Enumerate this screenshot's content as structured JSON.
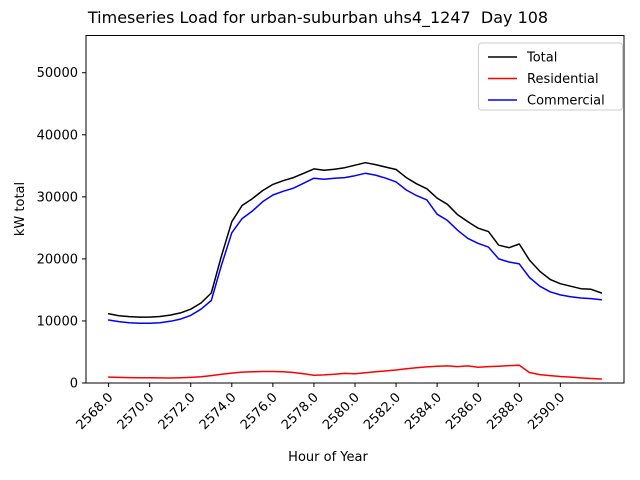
{
  "chart_data": {
    "type": "line",
    "title": "Timeseries Load for urban-suburban uhs4_1247  Day 108",
    "xlabel": "Hour of Year",
    "ylabel": "kW total",
    "xlim": [
      2566.9,
      2593.1
    ],
    "ylim": [
      0,
      56000
    ],
    "grid": false,
    "legend": {
      "position": "upper right"
    },
    "xticks": {
      "values": [
        2568,
        2570,
        2572,
        2574,
        2576,
        2578,
        2580,
        2582,
        2584,
        2586,
        2588,
        2590
      ],
      "labels": [
        "2568.0",
        "2570.0",
        "2572.0",
        "2574.0",
        "2576.0",
        "2578.0",
        "2580.0",
        "2582.0",
        "2584.0",
        "2586.0",
        "2588.0",
        "2590.0"
      ],
      "rotation": 45
    },
    "yticks": {
      "values": [
        0,
        10000,
        20000,
        30000,
        40000,
        50000
      ],
      "labels": [
        "0",
        "10000",
        "20000",
        "30000",
        "40000",
        "50000"
      ]
    },
    "x": [
      2568.0,
      2568.5,
      2569.0,
      2569.5,
      2570.0,
      2570.5,
      2571.0,
      2571.5,
      2572.0,
      2572.5,
      2573.0,
      2573.5,
      2574.0,
      2574.5,
      2575.0,
      2575.5,
      2576.0,
      2576.5,
      2577.0,
      2577.5,
      2578.0,
      2578.5,
      2579.0,
      2579.5,
      2580.0,
      2580.5,
      2581.0,
      2581.5,
      2582.0,
      2582.5,
      2583.0,
      2583.5,
      2584.0,
      2584.5,
      2585.0,
      2585.5,
      2586.0,
      2586.5,
      2587.0,
      2587.5,
      2588.0,
      2588.5,
      2589.0,
      2589.5,
      2590.0,
      2590.5,
      2591.0,
      2591.5,
      2592.0
    ],
    "series": [
      {
        "name": "Total",
        "color": "#000000",
        "values": [
          11150,
          10850,
          10700,
          10620,
          10620,
          10720,
          10950,
          11300,
          11900,
          12900,
          14500,
          20500,
          26000,
          28600,
          29700,
          31000,
          32000,
          32600,
          33100,
          33800,
          34500,
          34300,
          34450,
          34700,
          35100,
          35500,
          35200,
          34800,
          34400,
          33100,
          32100,
          31300,
          29800,
          28800,
          27100,
          26000,
          24950,
          24400,
          22200,
          21800,
          22400,
          19800,
          18000,
          16700,
          16000,
          15600,
          15200,
          15100,
          14500
        ]
      },
      {
        "name": "Residential",
        "color": "#ff0000",
        "values": [
          950,
          900,
          870,
          850,
          840,
          820,
          800,
          830,
          900,
          1000,
          1200,
          1400,
          1600,
          1750,
          1800,
          1850,
          1850,
          1800,
          1700,
          1500,
          1250,
          1300,
          1400,
          1550,
          1500,
          1650,
          1800,
          1950,
          2100,
          2300,
          2450,
          2600,
          2700,
          2750,
          2650,
          2750,
          2550,
          2650,
          2700,
          2800,
          2850,
          1700,
          1350,
          1200,
          1050,
          950,
          820,
          720,
          650
        ]
      },
      {
        "name": "Commercial",
        "color": "#0000ff",
        "values": [
          10150,
          9900,
          9700,
          9620,
          9620,
          9720,
          9950,
          10300,
          10900,
          11900,
          13300,
          19000,
          24200,
          26500,
          27700,
          29200,
          30300,
          30900,
          31400,
          32200,
          33000,
          32850,
          33000,
          33100,
          33400,
          33800,
          33500,
          33000,
          32400,
          31100,
          30200,
          29500,
          27200,
          26200,
          24600,
          23300,
          22500,
          21900,
          20000,
          19500,
          19200,
          17000,
          15600,
          14700,
          14200,
          13900,
          13700,
          13600,
          13400
        ]
      }
    ]
  }
}
